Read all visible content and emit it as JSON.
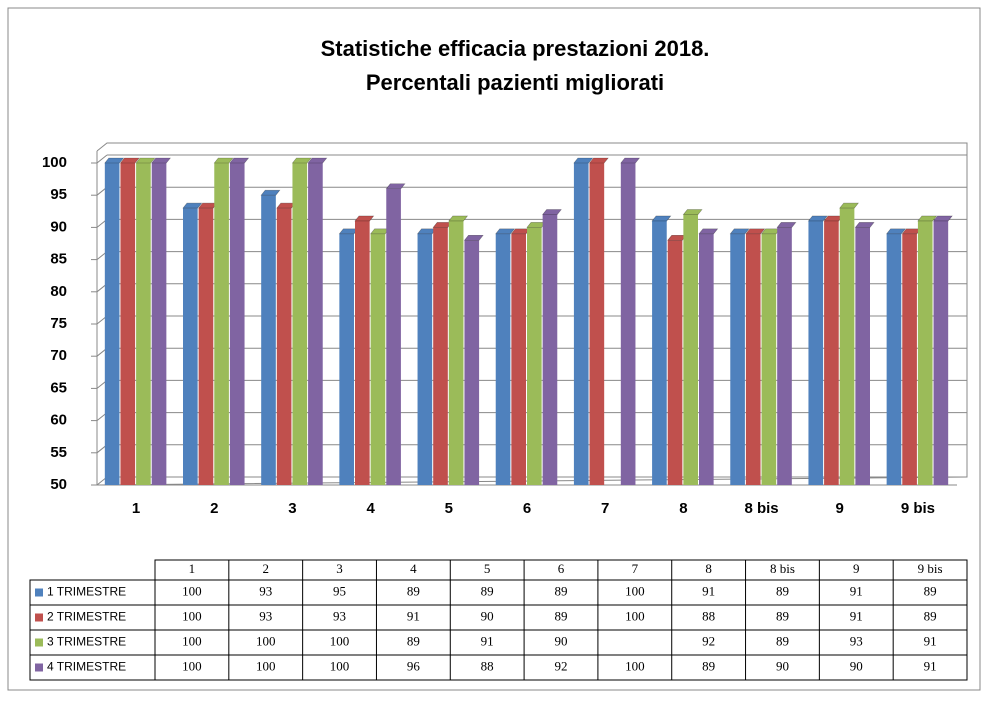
{
  "chart_data": {
    "type": "bar",
    "title": [
      "Statistiche efficacia prestazioni  2018.",
      "Percentali pazienti migliorati"
    ],
    "categories": [
      "1",
      "2",
      "3",
      "4",
      "5",
      "6",
      "7",
      "8",
      "8 bis",
      "9",
      "9 bis"
    ],
    "series": [
      {
        "name": "1 TRIMESTRE",
        "color": "#4f81bd",
        "values": [
          100,
          93,
          95,
          89,
          89,
          89,
          100,
          91,
          89,
          91,
          89
        ]
      },
      {
        "name": "2 TRIMESTRE",
        "color": "#c0504d",
        "values": [
          100,
          93,
          93,
          91,
          90,
          89,
          100,
          88,
          89,
          91,
          89
        ]
      },
      {
        "name": "3 TRIMESTRE",
        "color": "#9bbb59",
        "values": [
          100,
          100,
          100,
          89,
          91,
          90,
          null,
          92,
          89,
          93,
          91
        ]
      },
      {
        "name": "4 TRIMESTRE",
        "color": "#8064a2",
        "values": [
          100,
          100,
          100,
          96,
          88,
          92,
          100,
          89,
          90,
          90,
          91
        ]
      }
    ],
    "ylim": [
      50,
      100
    ],
    "yticks": [
      50,
      55,
      60,
      65,
      70,
      75,
      80,
      85,
      90,
      95,
      100
    ],
    "grid": true
  }
}
